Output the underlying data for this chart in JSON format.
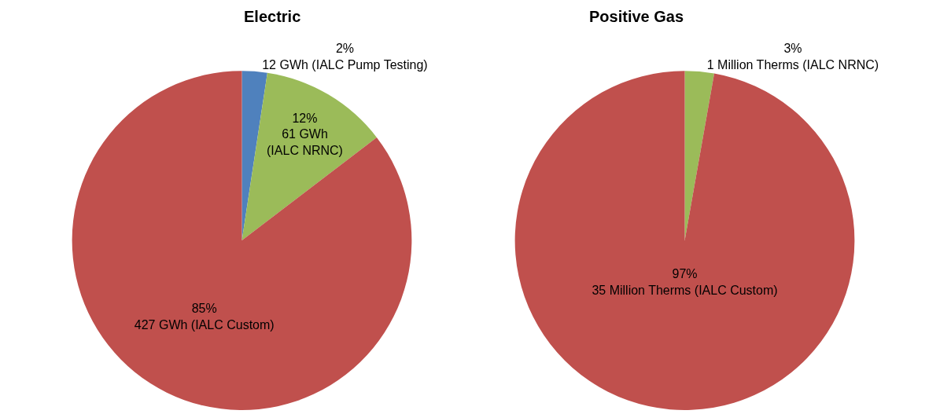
{
  "chart_data": [
    {
      "type": "pie",
      "title": "Electric",
      "categories": [
        null,
        null,
        null
      ],
      "values": [
        12,
        61,
        427
      ],
      "colors": [
        "#4f81bd",
        "#9bbb59",
        "#c0504d"
      ],
      "value_labels": [
        "2%\n12 GWh (IALC Pump Testing)",
        "12%\n61 GWh\n(IALC NRNC)",
        "85%\n427 GWh (IALC Custom)"
      ]
    },
    {
      "type": "pie",
      "title": "Positive Gas",
      "categories": [
        null,
        null
      ],
      "values": [
        1,
        35
      ],
      "colors": [
        "#9bbb59",
        "#c0504d"
      ],
      "value_labels": [
        "3%\n1 Million Therms (IALC NRNC)",
        "97%\n35 Million Therms (IALC Custom)"
      ]
    }
  ]
}
